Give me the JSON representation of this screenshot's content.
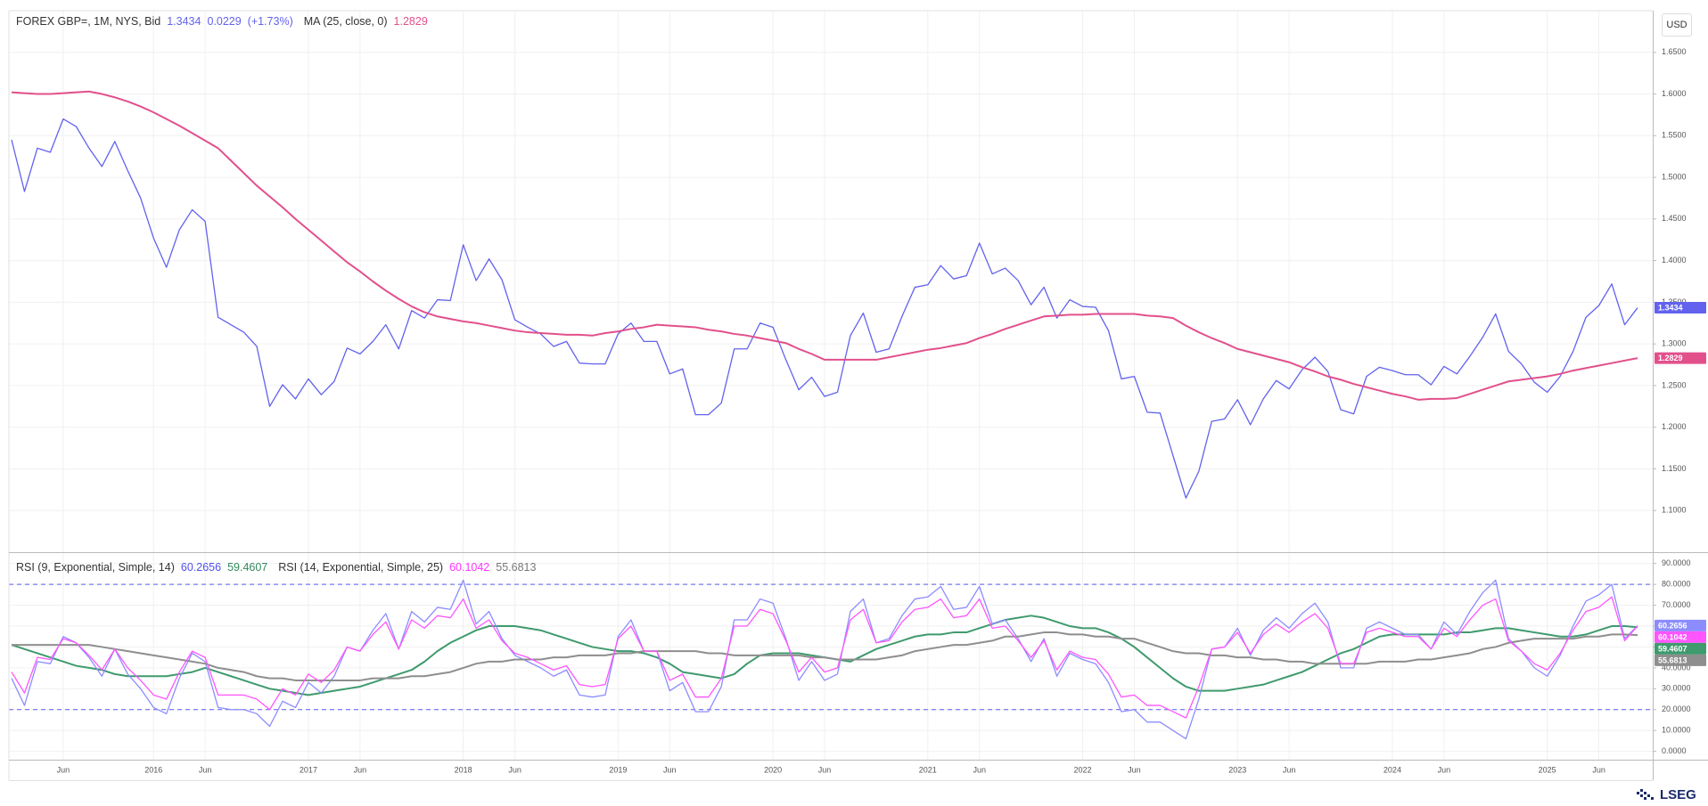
{
  "source": "LSEG",
  "chart_data": [
    {
      "type": "line",
      "currency": "USD",
      "change": 0.0229,
      "change_percent": {
        "value": 1.73,
        "label": "(+1.73%)"
      },
      "ylim": [
        1.05,
        1.7
      ],
      "yticks": [
        {
          "value": 1.1,
          "label": "1.1000"
        },
        {
          "value": 1.15,
          "label": "1.1500"
        },
        {
          "value": 1.2,
          "label": "1.2000"
        },
        {
          "value": 1.25,
          "label": "1.2500"
        },
        {
          "value": 1.3,
          "label": "1.3000"
        },
        {
          "value": 1.35,
          "label": "1.3500"
        },
        {
          "value": 1.4,
          "label": "1.4000"
        },
        {
          "value": 1.45,
          "label": "1.4500"
        },
        {
          "value": 1.5,
          "label": "1.5000"
        },
        {
          "value": 1.55,
          "label": "1.5500"
        },
        {
          "value": 1.6,
          "label": "1.6000"
        },
        {
          "value": 1.65,
          "label": "1.6500"
        }
      ],
      "grid": true,
      "series": [
        {
          "name": "FOREX GBP=, 1M, NYS, Bid",
          "color": "#6262ee",
          "values": [
            1.545,
            1.483,
            1.535,
            1.53,
            1.57,
            1.561,
            1.535,
            1.513,
            1.543,
            1.508,
            1.475,
            1.427,
            1.392,
            1.437,
            1.461,
            1.447,
            1.332,
            1.323,
            1.314,
            1.297,
            1.225,
            1.251,
            1.234,
            1.258,
            1.239,
            1.255,
            1.295,
            1.288,
            1.303,
            1.323,
            1.294,
            1.34,
            1.331,
            1.353,
            1.352,
            1.419,
            1.376,
            1.402,
            1.377,
            1.329,
            1.32,
            1.312,
            1.297,
            1.303,
            1.277,
            1.276,
            1.276,
            1.312,
            1.325,
            1.303,
            1.303,
            1.264,
            1.27,
            1.215,
            1.215,
            1.229,
            1.294,
            1.294,
            1.325,
            1.32,
            1.281,
            1.245,
            1.26,
            1.237,
            1.242,
            1.31,
            1.337,
            1.29,
            1.294,
            1.333,
            1.368,
            1.371,
            1.394,
            1.378,
            1.382,
            1.421,
            1.384,
            1.391,
            1.376,
            1.347,
            1.368,
            1.331,
            1.353,
            1.345,
            1.344,
            1.316,
            1.258,
            1.261,
            1.218,
            1.217,
            1.166,
            1.115,
            1.147,
            1.207,
            1.21,
            1.233,
            1.203,
            1.234,
            1.256,
            1.246,
            1.269,
            1.284,
            1.267,
            1.221,
            1.216,
            1.261,
            1.272,
            1.268,
            1.263,
            1.263,
            1.251,
            1.273,
            1.264,
            1.285,
            1.308,
            1.336,
            1.291,
            1.276,
            1.254,
            1.242,
            1.261,
            1.291,
            1.332,
            1.346,
            1.372,
            1.323,
            1.3434
          ]
        },
        {
          "name": "MA (25, close, 0)",
          "color": "#e2508c",
          "values": [
            1.602,
            1.601,
            1.6,
            1.6,
            1.601,
            1.602,
            1.603,
            1.6,
            1.596,
            1.591,
            1.585,
            1.578,
            1.57,
            1.562,
            1.553,
            1.544,
            1.535,
            1.52,
            1.505,
            1.49,
            1.477,
            1.464,
            1.45,
            1.437,
            1.424,
            1.411,
            1.398,
            1.387,
            1.375,
            1.364,
            1.354,
            1.345,
            1.338,
            1.333,
            1.33,
            1.327,
            1.325,
            1.322,
            1.319,
            1.316,
            1.314,
            1.313,
            1.312,
            1.311,
            1.311,
            1.31,
            1.313,
            1.315,
            1.318,
            1.32,
            1.323,
            1.322,
            1.321,
            1.32,
            1.317,
            1.315,
            1.312,
            1.31,
            1.307,
            1.304,
            1.301,
            1.294,
            1.288,
            1.281,
            1.281,
            1.281,
            1.281,
            1.281,
            1.284,
            1.287,
            1.29,
            1.293,
            1.295,
            1.298,
            1.301,
            1.307,
            1.312,
            1.318,
            1.323,
            1.328,
            1.333,
            1.334,
            1.335,
            1.335,
            1.336,
            1.336,
            1.336,
            1.336,
            1.334,
            1.333,
            1.331,
            1.322,
            1.314,
            1.307,
            1.301,
            1.294,
            1.29,
            1.286,
            1.282,
            1.278,
            1.272,
            1.267,
            1.261,
            1.257,
            1.252,
            1.248,
            1.244,
            1.24,
            1.237,
            1.233,
            1.234,
            1.234,
            1.235,
            1.24,
            1.245,
            1.25,
            1.255,
            1.257,
            1.259,
            1.261,
            1.264,
            1.268,
            1.271,
            1.274,
            1.277,
            1.28,
            1.2829
          ]
        }
      ]
    },
    {
      "type": "line",
      "categories": [
        null,
        null,
        null,
        null,
        "Jun",
        null,
        null,
        null,
        null,
        null,
        null,
        "2016",
        null,
        null,
        null,
        "Jun",
        null,
        null,
        null,
        null,
        null,
        null,
        null,
        "2017",
        null,
        null,
        null,
        "Jun",
        null,
        null,
        null,
        null,
        null,
        null,
        null,
        "2018",
        null,
        null,
        null,
        "Jun",
        null,
        null,
        null,
        null,
        null,
        null,
        null,
        "2019",
        null,
        null,
        null,
        "Jun",
        null,
        null,
        null,
        null,
        null,
        null,
        null,
        "2020",
        null,
        null,
        null,
        "Jun",
        null,
        null,
        null,
        null,
        null,
        null,
        null,
        "2021",
        null,
        null,
        null,
        "Jun",
        null,
        null,
        null,
        null,
        null,
        null,
        null,
        "2022",
        null,
        null,
        null,
        "Jun",
        null,
        null,
        null,
        null,
        null,
        null,
        null,
        "2023",
        null,
        null,
        null,
        "Jun",
        null,
        null,
        null,
        null,
        null,
        null,
        null,
        "2024",
        null,
        null,
        null,
        "Jun",
        null,
        null,
        null,
        null,
        null,
        null,
        null,
        "2025",
        null,
        null,
        null,
        "Jun",
        null,
        null,
        null
      ],
      "ylim": [
        -4,
        95
      ],
      "yticks": [
        {
          "value": 0,
          "label": "0.0000"
        },
        {
          "value": 10,
          "label": "10.0000"
        },
        {
          "value": 20,
          "label": "20.0000"
        },
        {
          "value": 30,
          "label": "30.0000"
        },
        {
          "value": 40,
          "label": "40.0000"
        },
        {
          "value": 50,
          "label": "50.0000"
        },
        {
          "value": 60,
          "label": "60.0000"
        },
        {
          "value": 70,
          "label": "70.0000"
        },
        {
          "value": 80,
          "label": "80.0000"
        },
        {
          "value": 90,
          "label": "90.0000"
        }
      ],
      "levels": [
        80,
        20
      ],
      "level_color": "#5b5bf0",
      "grid": true,
      "series": [
        {
          "name": "RSI (9, Exponential, Simple, 14)",
          "color": "#8c8cff",
          "values": [
            35,
            22,
            43,
            42,
            55,
            52,
            45,
            36,
            49,
            37,
            30,
            21,
            18,
            35,
            47,
            43,
            21,
            20,
            20,
            18,
            12,
            24,
            21,
            33,
            28,
            36,
            50,
            48,
            58,
            66,
            49,
            67,
            62,
            69,
            68,
            82,
            61,
            67,
            54,
            46,
            43,
            40,
            36,
            39,
            27,
            26,
            27,
            55,
            63,
            48,
            48,
            29,
            33,
            19,
            19,
            31,
            63,
            63,
            73,
            71,
            54,
            34,
            43,
            34,
            37,
            67,
            73,
            52,
            54,
            65,
            73,
            74,
            79,
            68,
            69,
            79,
            61,
            63,
            54,
            43,
            54,
            36,
            47,
            44,
            42,
            33,
            19,
            20,
            14,
            14,
            10,
            6,
            25,
            49,
            50,
            59,
            46,
            58,
            64,
            59,
            66,
            71,
            62,
            40,
            40,
            59,
            62,
            59,
            56,
            56,
            49,
            62,
            56,
            67,
            76,
            82,
            54,
            48,
            40,
            36,
            46,
            60,
            72,
            75,
            80,
            54,
            60.2656
          ],
          "signal": {
            "color": "#3f9a6e",
            "values": [
              51,
              49,
              47,
              45,
              43,
              41,
              40,
              39,
              37,
              36,
              36,
              36,
              36,
              37,
              38,
              40,
              38,
              36,
              34,
              32,
              30,
              29,
              28,
              27,
              28,
              29,
              30,
              31,
              33,
              35,
              37,
              39,
              43,
              48,
              52,
              55,
              58,
              60,
              60,
              60,
              59,
              58,
              56,
              54,
              52,
              50,
              49,
              48,
              48,
              47,
              45,
              42,
              38,
              37,
              36,
              35,
              37,
              42,
              46,
              47,
              47,
              47,
              46,
              45,
              44,
              43,
              46,
              49,
              51,
              53,
              55,
              56,
              56,
              57,
              57,
              59,
              61,
              63,
              64,
              65,
              64,
              62,
              60,
              59,
              59,
              57,
              54,
              50,
              45,
              40,
              35,
              31,
              29,
              29,
              29,
              30,
              31,
              32,
              34,
              36,
              38,
              41,
              44,
              47,
              49,
              52,
              55,
              56,
              56,
              56,
              56,
              56,
              57,
              57,
              58,
              59,
              59,
              58,
              57,
              56,
              55,
              55,
              56,
              58,
              60,
              60,
              59.4607
            ]
          }
        },
        {
          "name": "RSI (14, Exponential, Simple, 25)",
          "color": "#ff55ff",
          "values": [
            38,
            28,
            45,
            44,
            54,
            52,
            46,
            39,
            49,
            40,
            34,
            27,
            25,
            38,
            48,
            45,
            27,
            27,
            27,
            25,
            20,
            30,
            27,
            37,
            33,
            39,
            50,
            48,
            56,
            62,
            49,
            63,
            59,
            65,
            64,
            73,
            59,
            63,
            53,
            47,
            45,
            42,
            39,
            41,
            32,
            31,
            32,
            54,
            60,
            48,
            48,
            34,
            37,
            26,
            26,
            35,
            60,
            60,
            68,
            66,
            53,
            38,
            45,
            38,
            40,
            63,
            68,
            52,
            53,
            62,
            68,
            69,
            73,
            64,
            65,
            73,
            59,
            60,
            53,
            45,
            53,
            39,
            48,
            45,
            44,
            37,
            26,
            27,
            22,
            22,
            19,
            16,
            31,
            49,
            50,
            57,
            47,
            56,
            61,
            57,
            62,
            66,
            59,
            42,
            42,
            57,
            59,
            57,
            55,
            55,
            49,
            59,
            55,
            63,
            70,
            73,
            53,
            48,
            42,
            39,
            47,
            58,
            67,
            69,
            74,
            53,
            60.1042
          ],
          "signal": {
            "color": "#8e8e8e",
            "values": [
              51,
              51,
              51,
              51,
              51,
              51,
              51,
              50,
              49,
              48,
              47,
              46,
              45,
              44,
              43,
              42,
              40,
              39,
              38,
              36,
              35,
              35,
              34,
              34,
              34,
              34,
              34,
              34,
              35,
              35,
              35,
              36,
              36,
              37,
              38,
              40,
              42,
              43,
              43,
              44,
              44,
              44,
              45,
              45,
              46,
              46,
              46,
              47,
              47,
              48,
              48,
              48,
              48,
              48,
              47,
              47,
              46,
              46,
              46,
              46,
              46,
              46,
              45,
              45,
              44,
              44,
              44,
              44,
              45,
              46,
              48,
              49,
              50,
              51,
              51,
              52,
              53,
              55,
              55,
              56,
              57,
              57,
              56,
              56,
              55,
              55,
              54,
              54,
              52,
              50,
              48,
              47,
              47,
              46,
              46,
              45,
              45,
              44,
              44,
              43,
              43,
              42,
              42,
              42,
              42,
              42,
              43,
              43,
              43,
              44,
              44,
              45,
              46,
              47,
              49,
              50,
              52,
              53,
              54,
              54,
              54,
              54,
              55,
              55,
              56,
              56,
              55.6813
            ]
          }
        }
      ]
    }
  ]
}
